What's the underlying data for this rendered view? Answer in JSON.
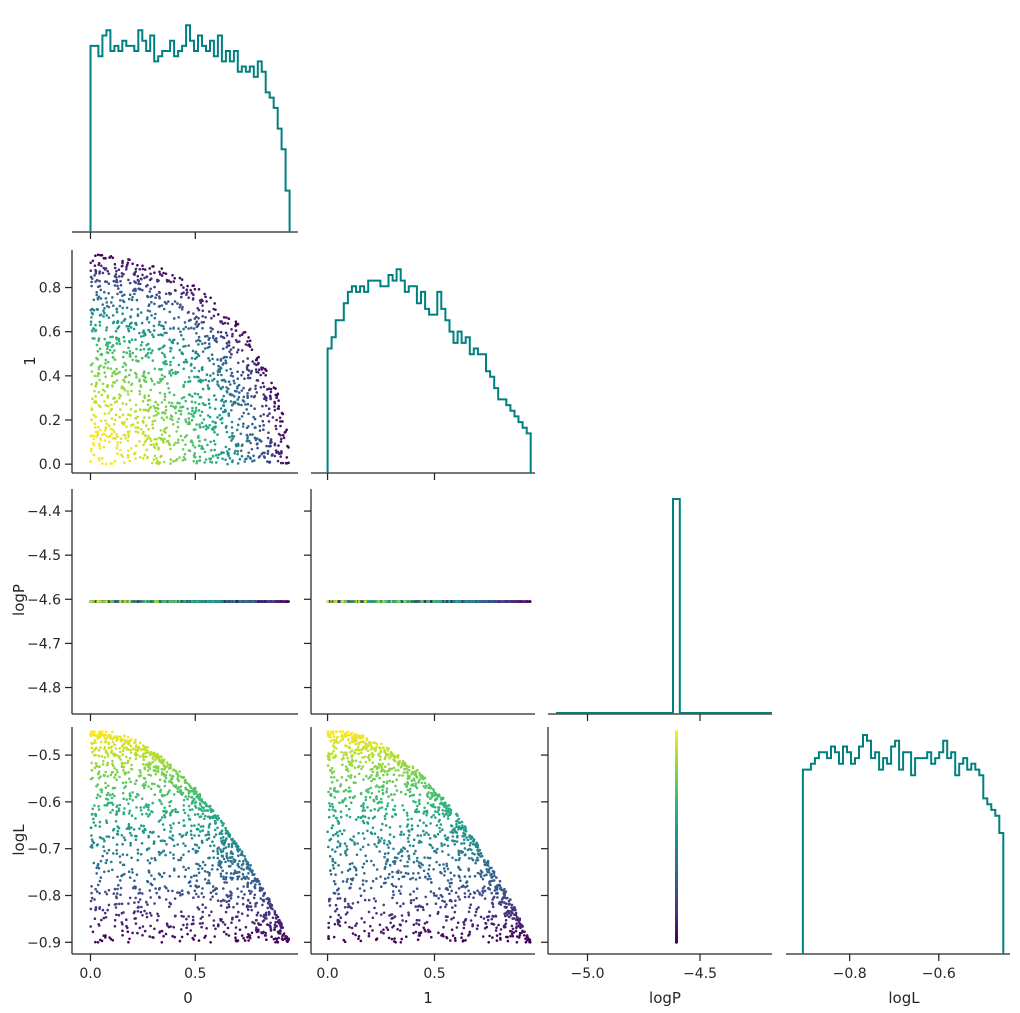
{
  "chart_data": {
    "type": "corner-plot",
    "variables": [
      "0",
      "1",
      "logP",
      "logL"
    ],
    "axis_labels": {
      "row_1": "1",
      "row_2": "logP",
      "row_3": "logL",
      "col_0": "0",
      "col_1": "1",
      "col_2": "logP",
      "col_3": "logL"
    },
    "ticks": {
      "x0": [
        "0.0",
        "0.5"
      ],
      "x1": [
        "0.0",
        "0.5"
      ],
      "x2": [
        "−5.0",
        "−4.5"
      ],
      "x3": [
        "−0.8",
        "−0.6"
      ],
      "y1": [
        "0.0",
        "0.2",
        "0.4",
        "0.6",
        "0.8"
      ],
      "y2": [
        "−4.8",
        "−4.7",
        "−4.6",
        "−4.5",
        "−4.4"
      ],
      "y3": [
        "−0.9",
        "−0.8",
        "−0.7",
        "−0.6",
        "−0.5"
      ]
    },
    "tick_values": {
      "x0": [
        0.0,
        0.5
      ],
      "x1": [
        0.0,
        0.5
      ],
      "x2": [
        -5.0,
        -4.5
      ],
      "x3": [
        -0.8,
        -0.6
      ],
      "y1": [
        0.0,
        0.2,
        0.4,
        0.6,
        0.8
      ],
      "y2": [
        -4.8,
        -4.7,
        -4.6,
        -4.5,
        -4.4
      ],
      "y3": [
        -0.9,
        -0.8,
        -0.7,
        -0.6,
        -0.5
      ]
    },
    "ranges": {
      "var0": [
        -0.05,
        0.99
      ],
      "var1": [
        -0.04,
        0.97
      ],
      "logP_row": [
        -4.86,
        -4.35
      ],
      "logP_col": [
        -5.14,
        -4.18
      ],
      "logL": [
        -0.925,
        -0.44
      ]
    },
    "logP_value": -4.605,
    "n_points": 1500,
    "colormap": "viridis",
    "color_variable": "logL",
    "histograms": {
      "var0": {
        "bins": [
          0.0,
          0.95
        ],
        "counts": [
          36,
          36,
          34,
          38,
          39,
          35,
          36,
          35,
          37,
          36,
          36,
          35,
          39,
          37,
          35,
          38,
          33,
          34,
          35,
          35,
          37,
          34,
          35,
          36,
          40,
          37,
          35,
          38,
          36,
          35,
          37,
          34,
          38,
          33,
          35,
          33,
          35,
          31,
          32,
          31,
          32,
          30,
          33,
          31,
          27,
          26,
          24,
          20,
          16,
          8
        ],
        "max": 41
      },
      "var1": {
        "bins": [
          0.0,
          0.95
        ],
        "counts": [
          22,
          24,
          27,
          27,
          30,
          32,
          33,
          32,
          33,
          32,
          34,
          34,
          34,
          33,
          33,
          35,
          34,
          36,
          34,
          32,
          33,
          33,
          30,
          32,
          29,
          28,
          28,
          32,
          29,
          27,
          25,
          23,
          25,
          23,
          24,
          21,
          22,
          21,
          21,
          18,
          17,
          15,
          13,
          13,
          12,
          11,
          10,
          9,
          8,
          7
        ],
        "max": 38
      },
      "logP": {
        "bins": [
          -4.62,
          -4.59
        ],
        "counts": [
          1500
        ],
        "max": 1500
      },
      "logL": {
        "bins": [
          -0.905,
          -0.455
        ],
        "counts": [
          32,
          32,
          33,
          34,
          35,
          35,
          34,
          36,
          35,
          33,
          36,
          35,
          33,
          34,
          36,
          38,
          37,
          34,
          35,
          32,
          34,
          33,
          36,
          37,
          32,
          35,
          35,
          31,
          34,
          34,
          34,
          35,
          33,
          34,
          35,
          37,
          34,
          35,
          31,
          33,
          34,
          32,
          33,
          32,
          31,
          27,
          26,
          25,
          24,
          21
        ],
        "max": 38
      }
    },
    "colors": {
      "histogram": "#008080",
      "axes": "#262626",
      "background": "#ffffff"
    }
  }
}
